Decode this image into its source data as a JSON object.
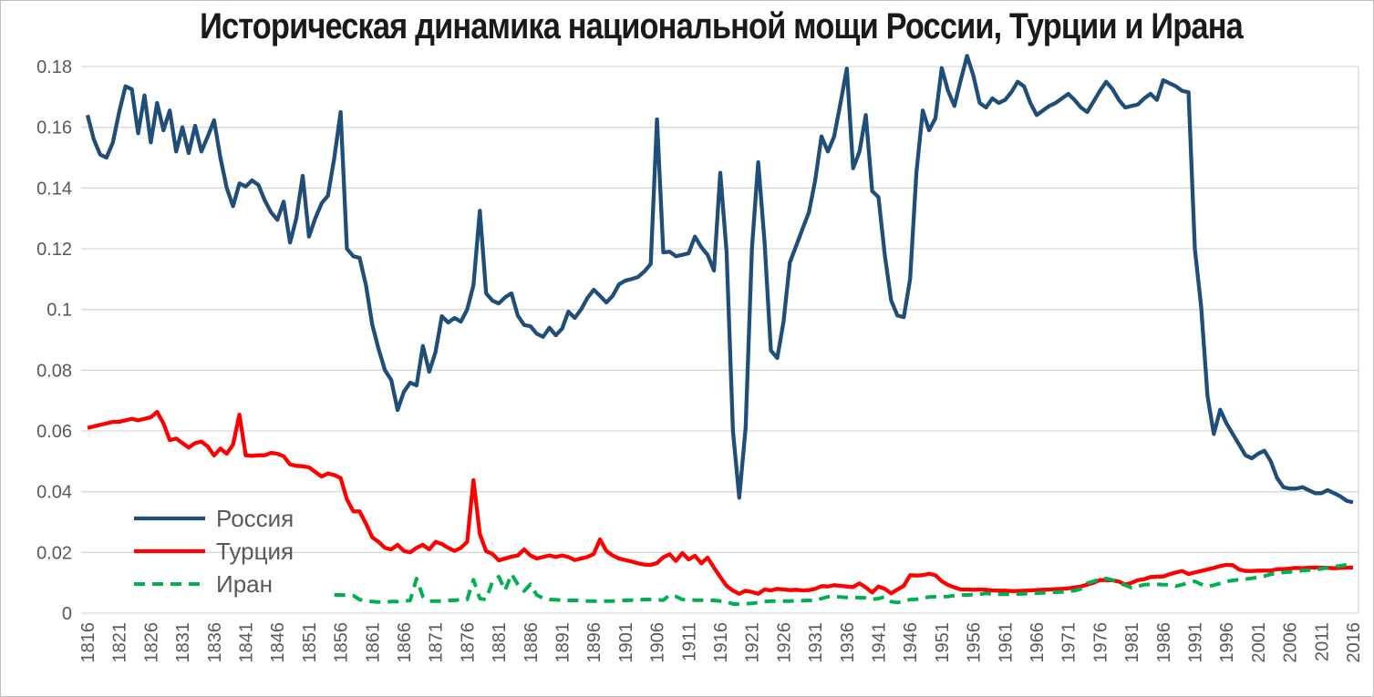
{
  "chart_data": {
    "type": "line",
    "title": "Историческая динамика национальной мощи России, Турции и Ирана",
    "xlabel": "",
    "ylabel": "",
    "x_start": 1816,
    "x_end": 2016,
    "x_tick_interval": 5,
    "x_tick_labels": [
      1816,
      1821,
      1826,
      1831,
      1836,
      1841,
      1846,
      1851,
      1856,
      1861,
      1866,
      1871,
      1876,
      1881,
      1886,
      1891,
      1896,
      1901,
      1906,
      1911,
      1916,
      1921,
      1926,
      1931,
      1936,
      1941,
      1946,
      1951,
      1956,
      1961,
      1966,
      1971,
      1976,
      1981,
      1986,
      1991,
      1996,
      2001,
      2006,
      2011,
      2016
    ],
    "ylim": [
      0,
      0.18
    ],
    "y_tick_interval": 0.02,
    "y_tick_labels": [
      "0",
      "0.02",
      "0.04",
      "0.06",
      "0.08",
      "0.1",
      "0.12",
      "0.14",
      "0.16",
      "0.18"
    ],
    "grid": true,
    "legend_position": "inside-left-lower",
    "colors": {
      "axis_label": "#595959",
      "gridline": "#D9D9D9",
      "title": "#1A1A1A",
      "frame_border": "#BFBFBF",
      "background": "#FFFFFF"
    },
    "series": [
      {
        "key": "russia",
        "name": "Россия",
        "color": "#1F4E79",
        "style": "solid",
        "start_year": 1816,
        "values": [
          0.164,
          0.156,
          0.151,
          0.15,
          0.155,
          0.165,
          0.1735,
          0.1725,
          0.158,
          0.1705,
          0.155,
          0.168,
          0.159,
          0.1655,
          0.152,
          0.16,
          0.1515,
          0.1605,
          0.152,
          0.157,
          0.1623,
          0.15,
          0.14,
          0.134,
          0.1415,
          0.1405,
          0.1425,
          0.141,
          0.136,
          0.132,
          0.1295,
          0.1355,
          0.122,
          0.13,
          0.144,
          0.124,
          0.13,
          0.135,
          0.1375,
          0.15,
          0.165,
          0.12,
          0.1175,
          0.117,
          0.108,
          0.095,
          0.087,
          0.08,
          0.0768,
          0.0669,
          0.0729,
          0.0759,
          0.075,
          0.088,
          0.0795,
          0.086,
          0.0978,
          0.0957,
          0.0972,
          0.096,
          0.1,
          0.108,
          0.1325,
          0.1053,
          0.1029,
          0.102,
          0.104,
          0.1053,
          0.098,
          0.0949,
          0.0945,
          0.092,
          0.091,
          0.094,
          0.0915,
          0.0937,
          0.0993,
          0.0972,
          0.1,
          0.1038,
          0.1065,
          0.1045,
          0.1023,
          0.1045,
          0.1083,
          0.1095,
          0.11,
          0.1107,
          0.1125,
          0.115,
          0.1626,
          0.1188,
          0.119,
          0.1175,
          0.118,
          0.1185,
          0.124,
          0.1205,
          0.118,
          0.1128,
          0.145,
          0.119,
          0.06,
          0.038,
          0.061,
          0.12,
          0.1485,
          0.122,
          0.0865,
          0.084,
          0.096,
          0.1155,
          0.121,
          0.1265,
          0.132,
          0.1425,
          0.157,
          0.152,
          0.157,
          0.168,
          0.1793,
          0.1465,
          0.152,
          0.164,
          0.139,
          0.137,
          0.118,
          0.103,
          0.098,
          0.0975,
          0.11,
          0.145,
          0.1655,
          0.159,
          0.163,
          0.1795,
          0.172,
          0.167,
          0.1755,
          0.1835,
          0.177,
          0.168,
          0.1665,
          0.1695,
          0.168,
          0.169,
          0.1715,
          0.175,
          0.1735,
          0.168,
          0.164,
          0.1655,
          0.167,
          0.168,
          0.1695,
          0.171,
          0.169,
          0.1665,
          0.165,
          0.1685,
          0.172,
          0.175,
          0.1725,
          0.169,
          0.1665,
          0.167,
          0.1675,
          0.1695,
          0.171,
          0.169,
          0.1755,
          0.1745,
          0.1735,
          0.172,
          0.1715,
          0.12,
          0.101,
          0.0715,
          0.059,
          0.067,
          0.0625,
          0.059,
          0.0555,
          0.052,
          0.051,
          0.0525,
          0.0535,
          0.05,
          0.0445,
          0.0415,
          0.041,
          0.041,
          0.0415,
          0.0405,
          0.0395,
          0.0395,
          0.0405,
          0.0395,
          0.0385,
          0.037,
          0.0365
        ]
      },
      {
        "key": "turkey",
        "name": "Турция",
        "color": "#FF0000",
        "style": "solid",
        "start_year": 1816,
        "values": [
          0.061,
          0.0615,
          0.062,
          0.0625,
          0.063,
          0.063,
          0.0635,
          0.064,
          0.0635,
          0.064,
          0.0645,
          0.0663,
          0.0625,
          0.057,
          0.0575,
          0.056,
          0.0545,
          0.056,
          0.0565,
          0.0549,
          0.0519,
          0.0542,
          0.0525,
          0.0555,
          0.0654,
          0.052,
          0.0518,
          0.052,
          0.052,
          0.0528,
          0.0525,
          0.0517,
          0.049,
          0.0485,
          0.0484,
          0.048,
          0.0465,
          0.045,
          0.046,
          0.0455,
          0.0445,
          0.0375,
          0.0335,
          0.0335,
          0.0295,
          0.025,
          0.0235,
          0.0215,
          0.021,
          0.0225,
          0.0205,
          0.02,
          0.0215,
          0.0225,
          0.021,
          0.0235,
          0.0228,
          0.0215,
          0.0205,
          0.0215,
          0.0235,
          0.0438,
          0.026,
          0.0204,
          0.0195,
          0.0174,
          0.018,
          0.0186,
          0.019,
          0.021,
          0.019,
          0.018,
          0.0185,
          0.019,
          0.0185,
          0.019,
          0.0185,
          0.0175,
          0.018,
          0.0185,
          0.0195,
          0.0243,
          0.0205,
          0.019,
          0.018,
          0.0175,
          0.017,
          0.0164,
          0.016,
          0.0159,
          0.0165,
          0.0184,
          0.0194,
          0.0172,
          0.0198,
          0.0177,
          0.0189,
          0.0164,
          0.0183,
          0.015,
          0.0119,
          0.009,
          0.0074,
          0.0064,
          0.0074,
          0.007,
          0.0064,
          0.0078,
          0.0075,
          0.008,
          0.0078,
          0.0076,
          0.0077,
          0.0075,
          0.0076,
          0.008,
          0.0089,
          0.0088,
          0.0092,
          0.009,
          0.0088,
          0.0086,
          0.0098,
          0.0085,
          0.0068,
          0.0088,
          0.008,
          0.0065,
          0.0078,
          0.009,
          0.0125,
          0.0124,
          0.0125,
          0.013,
          0.0125,
          0.0105,
          0.0093,
          0.0085,
          0.0078,
          0.0078,
          0.0077,
          0.0078,
          0.0077,
          0.0075,
          0.0074,
          0.0074,
          0.0073,
          0.0073,
          0.0074,
          0.0075,
          0.0076,
          0.0077,
          0.0078,
          0.0079,
          0.008,
          0.0082,
          0.0085,
          0.0088,
          0.0094,
          0.01,
          0.0109,
          0.0109,
          0.0108,
          0.0104,
          0.0094,
          0.01,
          0.0109,
          0.0112,
          0.0119,
          0.012,
          0.0121,
          0.0128,
          0.0134,
          0.0139,
          0.0129,
          0.0134,
          0.0139,
          0.0144,
          0.0149,
          0.0155,
          0.0159,
          0.0158,
          0.0144,
          0.0139,
          0.0139,
          0.014,
          0.014,
          0.014,
          0.0145,
          0.0145,
          0.0147,
          0.0149,
          0.0148,
          0.015,
          0.015,
          0.015,
          0.0149,
          0.0148,
          0.0149,
          0.015,
          0.015
        ]
      },
      {
        "key": "iran",
        "name": "Иран",
        "color": "#00B050",
        "style": "dashed",
        "start_year": 1855,
        "values": [
          0.006,
          0.006,
          0.0059,
          0.0058,
          0.0045,
          0.004,
          0.0038,
          0.0037,
          0.0037,
          0.0038,
          0.0038,
          0.004,
          0.0042,
          0.0114,
          0.0055,
          0.004,
          0.004,
          0.004,
          0.0042,
          0.0042,
          0.0045,
          0.0045,
          0.011,
          0.0048,
          0.0045,
          0.0105,
          0.012,
          0.0075,
          0.0129,
          0.0095,
          0.0073,
          0.0095,
          0.006,
          0.0049,
          0.0045,
          0.0044,
          0.0043,
          0.0042,
          0.0042,
          0.0041,
          0.004,
          0.004,
          0.004,
          0.004,
          0.004,
          0.0041,
          0.0042,
          0.0043,
          0.0044,
          0.0045,
          0.0045,
          0.0044,
          0.0043,
          0.006,
          0.0055,
          0.0045,
          0.0044,
          0.0043,
          0.0043,
          0.0042,
          0.0042,
          0.004,
          0.0038,
          0.003,
          0.003,
          0.0031,
          0.0032,
          0.0035,
          0.0038,
          0.004,
          0.004,
          0.004,
          0.004,
          0.0041,
          0.0041,
          0.0042,
          0.0042,
          0.0048,
          0.0054,
          0.0054,
          0.0053,
          0.0052,
          0.0052,
          0.0051,
          0.005,
          0.0046,
          0.0048,
          0.0054,
          0.0038,
          0.0035,
          0.0038,
          0.0045,
          0.0046,
          0.005,
          0.0053,
          0.0054,
          0.0054,
          0.0055,
          0.0058,
          0.006,
          0.006,
          0.0061,
          0.0062,
          0.0065,
          0.0063,
          0.0062,
          0.0062,
          0.0062,
          0.0063,
          0.0064,
          0.0065,
          0.0066,
          0.0067,
          0.0068,
          0.0069,
          0.007,
          0.0072,
          0.0074,
          0.008,
          0.0099,
          0.0105,
          0.0112,
          0.0114,
          0.0109,
          0.01,
          0.0092,
          0.0084,
          0.0088,
          0.0094,
          0.0095,
          0.0095,
          0.0094,
          0.0094,
          0.0089,
          0.0094,
          0.01,
          0.0105,
          0.0095,
          0.0088,
          0.0092,
          0.0098,
          0.0104,
          0.0108,
          0.011,
          0.0112,
          0.0115,
          0.0118,
          0.0122,
          0.0128,
          0.0131,
          0.0134,
          0.0136,
          0.0138,
          0.014,
          0.0142,
          0.0143,
          0.0146,
          0.015,
          0.0153,
          0.0156,
          0.0159,
          0.0162
        ]
      }
    ],
    "legend": {
      "items": [
        "Россия",
        "Турция",
        "Иран"
      ]
    }
  }
}
